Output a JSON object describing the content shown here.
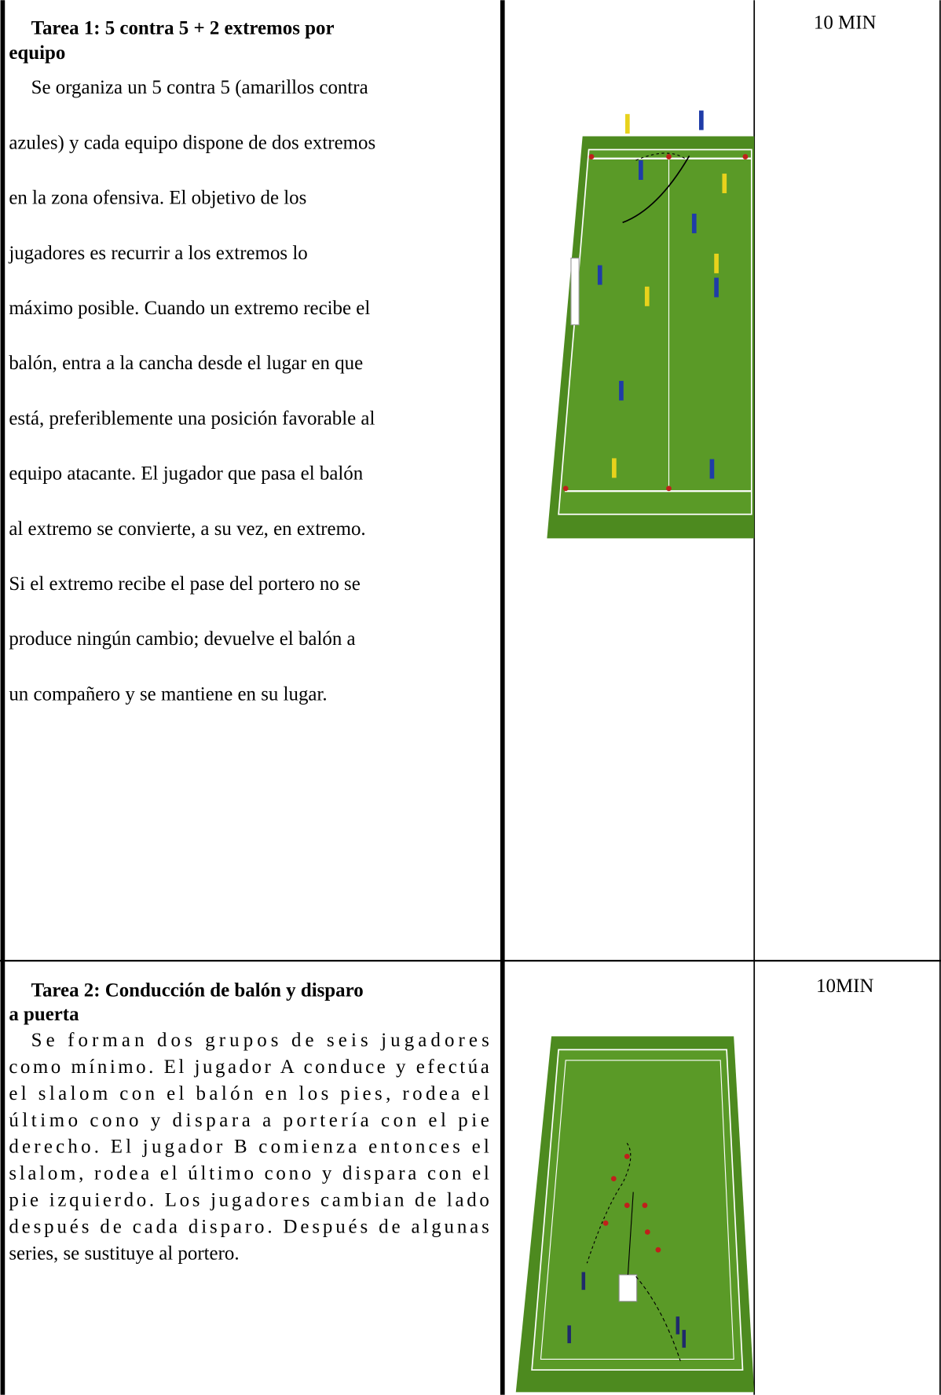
{
  "rows": [
    {
      "title_lines": [
        "Tarea 1: 5 contra 5 + 2 extremos por",
        "equipo"
      ],
      "text_lines": [
        "Se organiza un 5 contra 5 (amarillos contra",
        "azules) y cada equipo dispone de dos extremos",
        "en la zona ofensiva. El objetivo de los",
        "jugadores es recurrir a los extremos lo",
        "máximo posible. Cuando un extremo recibe el",
        "balón, entra a la cancha desde el lugar en que",
        "está, preferiblemente una posición favorable al",
        "equipo atacante. El jugador que pasa el balón",
        "al extremo se convierte, a su vez, en extremo.",
        "Si el extremo recibe el pase del portero no se",
        "produce ningún cambio; devuelve el balón a",
        "un compañero y se mantiene en su lugar."
      ],
      "duration": "10 MIN"
    },
    {
      "title_lines": [
        "Tarea 2: Conducción de balón y disparo",
        "a puerta"
      ],
      "text_lines": [
        "Se forman dos grupos de seis jugadores",
        "como mínimo. El jugador A conduce y efectúa",
        "el slalom con el balón en los pies, rodea el",
        "último cono y dispara a portería con el pie",
        "derecho. El jugador B comienza entonces el",
        "slalom, rodea el último cono y dispara con el",
        "pie izquierdo. Los jugadores cambian de lado",
        "después de cada disparo. Después de algunas",
        "series, se sustituye al portero."
      ],
      "duration": "10MIN"
    }
  ]
}
